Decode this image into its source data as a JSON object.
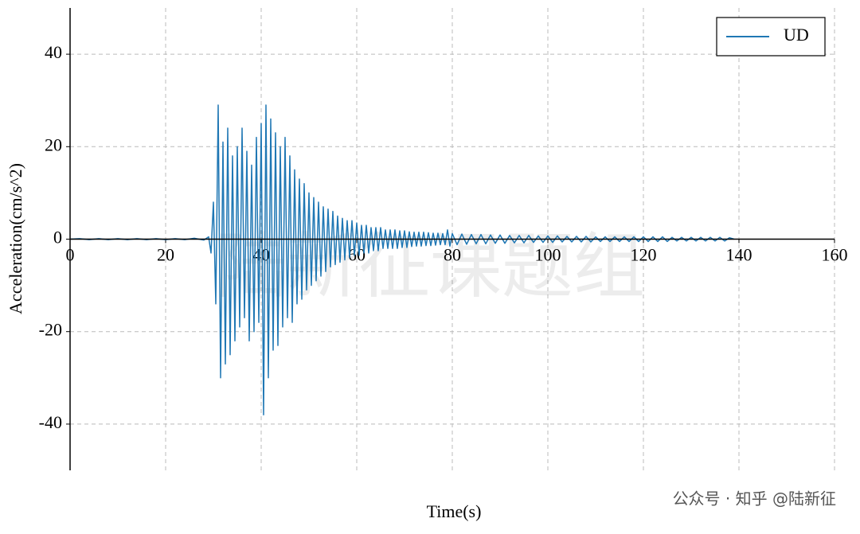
{
  "chart_data": {
    "type": "line",
    "ylabel": "Acceleration(cm/s^2)",
    "xlabel": "Time(s)",
    "watermark": "陆新征课题组",
    "credit": "公众号 · 知乎 @陆新征",
    "xlim": [
      0,
      160
    ],
    "xticks": [
      0,
      20,
      40,
      60,
      80,
      100,
      120,
      140,
      160
    ],
    "ylim": [
      -50,
      50
    ],
    "yticks": [
      -40,
      -20,
      0,
      20,
      40
    ],
    "grid": true,
    "legend": "upper right",
    "x": [
      0,
      2,
      4,
      6,
      8,
      10,
      12,
      14,
      16,
      18,
      20,
      22,
      24,
      26,
      28,
      29,
      29.5,
      30,
      30.5,
      31,
      31.5,
      32,
      32.5,
      33,
      33.5,
      34,
      34.5,
      35,
      35.5,
      36,
      36.5,
      37,
      37.5,
      38,
      38.5,
      39,
      39.5,
      40,
      40.5,
      41,
      41.5,
      42,
      42.5,
      43,
      43.5,
      44,
      44.5,
      45,
      45.5,
      46,
      46.5,
      47,
      47.5,
      48,
      48.5,
      49,
      49.5,
      50,
      50.5,
      51,
      51.5,
      52,
      52.5,
      53,
      53.5,
      54,
      54.5,
      55,
      55.5,
      56,
      56.5,
      57,
      57.5,
      58,
      58.5,
      59,
      59.5,
      60,
      60.5,
      61,
      61.5,
      62,
      62.5,
      63,
      63.5,
      64,
      64.5,
      65,
      65.5,
      66,
      66.5,
      67,
      67.5,
      68,
      68.5,
      69,
      69.5,
      70,
      70.5,
      71,
      71.5,
      72,
      72.5,
      73,
      73.5,
      74,
      74.5,
      75,
      75.5,
      76,
      76.5,
      77,
      77.5,
      78,
      78.5,
      79,
      79.5,
      80,
      81,
      82,
      83,
      84,
      85,
      86,
      87,
      88,
      89,
      90,
      91,
      92,
      93,
      94,
      95,
      96,
      97,
      98,
      99,
      100,
      101,
      102,
      103,
      104,
      105,
      106,
      107,
      108,
      109,
      110,
      111,
      112,
      113,
      114,
      115,
      116,
      117,
      118,
      119,
      120,
      121,
      122,
      123,
      124,
      125,
      126,
      127,
      128,
      129,
      130,
      131,
      132,
      133,
      134,
      135,
      136,
      137,
      138,
      139
    ],
    "series": [
      {
        "name": "UD",
        "color": "#1f77b4",
        "values": [
          0,
          0.1,
          -0.1,
          0.1,
          -0.1,
          0.1,
          -0.1,
          0.1,
          -0.1,
          0.1,
          -0.1,
          0.1,
          -0.1,
          0.2,
          -0.2,
          0.5,
          -3,
          8,
          -14,
          29,
          -30,
          21,
          -27,
          24,
          -25,
          18,
          -22,
          20,
          -19,
          24,
          -17,
          19,
          -22,
          16,
          -20,
          22,
          -18,
          25,
          -38,
          29,
          -30,
          26,
          -24,
          23,
          -23,
          20,
          -19,
          22,
          -17,
          18,
          -18,
          15,
          -14,
          13,
          -13,
          12,
          -11,
          10,
          -10,
          9,
          -9,
          8,
          -8,
          7,
          -7,
          6.5,
          -6,
          6,
          -5.5,
          5,
          -5,
          4.5,
          -4.5,
          4,
          -4,
          4,
          -3.5,
          3.5,
          -3.5,
          3,
          -3,
          3,
          -3,
          2.5,
          -2.5,
          2.5,
          -2.5,
          2.5,
          -2,
          2,
          -2,
          2,
          -2,
          2,
          -2,
          1.8,
          -1.8,
          1.8,
          -1.8,
          1.6,
          -1.6,
          1.5,
          -1.5,
          1.5,
          -1.5,
          1.5,
          -1.4,
          1.4,
          -1.4,
          1.3,
          -1.3,
          1.3,
          -1.2,
          1.2,
          -1.2,
          2,
          -1.5,
          1.2,
          -1.2,
          1.1,
          -1.1,
          1,
          -1,
          1,
          -1,
          0.9,
          -0.9,
          0.9,
          -0.9,
          0.8,
          -0.8,
          0.8,
          -0.8,
          0.8,
          -0.7,
          0.7,
          -0.7,
          0.7,
          -0.7,
          0.7,
          -0.6,
          0.6,
          -0.6,
          0.6,
          -0.6,
          0.6,
          -0.6,
          0.5,
          -0.5,
          0.5,
          -0.5,
          0.5,
          -0.5,
          0.5,
          -0.5,
          0.5,
          -0.5,
          0.5,
          -0.5,
          0.5,
          -0.5,
          0.5,
          -0.5,
          0.4,
          -0.4,
          0.4,
          -0.4,
          0.4,
          -0.4,
          0.4,
          -0.4,
          0.4,
          -0.4,
          0.4,
          -0.4,
          0.3,
          0
        ]
      }
    ]
  }
}
